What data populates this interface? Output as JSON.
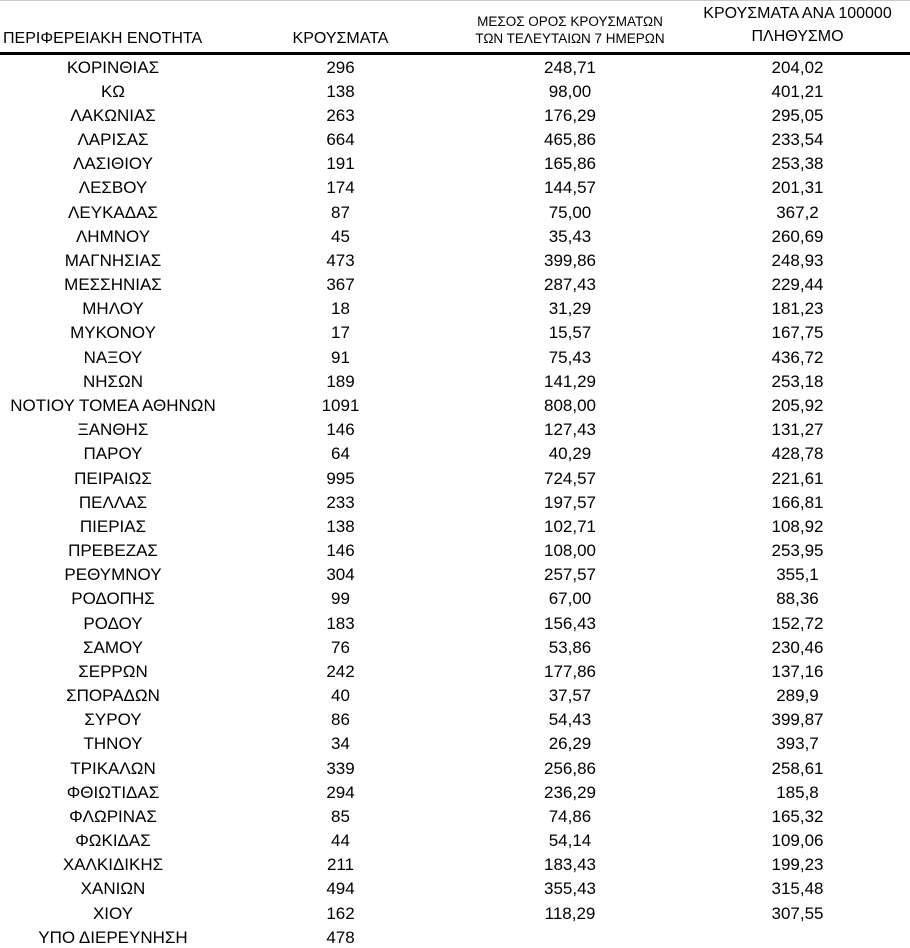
{
  "table": {
    "headers": {
      "region": "ΠΕΡΙΦΕΡΕΙΑΚΗ ΕΝΟΤΗΤΑ",
      "cases": "ΚΡΟΥΣΜΑΤΑ",
      "avg7_line1": "ΜΕΣΟΣ ΟΡΟΣ ΚΡΟΥΣΜΑΤΩΝ",
      "avg7_line2": "ΤΩΝ ΤΕΛΕΥΤΑΙΩΝ 7 ΗΜΕΡΩΝ",
      "per100k_line1": "ΚΡΟΥΣΜΑΤΑ ΑΝΑ 100000",
      "per100k_line2": "ΠΛΗΘΥΣΜΟ"
    },
    "rows": [
      {
        "region": "ΚΟΡΙΝΘΙΑΣ",
        "cases": "296",
        "avg7": "248,71",
        "per100k": "204,02"
      },
      {
        "region": "ΚΩ",
        "cases": "138",
        "avg7": "98,00",
        "per100k": "401,21"
      },
      {
        "region": "ΛΑΚΩΝΙΑΣ",
        "cases": "263",
        "avg7": "176,29",
        "per100k": "295,05"
      },
      {
        "region": "ΛΑΡΙΣΑΣ",
        "cases": "664",
        "avg7": "465,86",
        "per100k": "233,54"
      },
      {
        "region": "ΛΑΣΙΘΙΟΥ",
        "cases": "191",
        "avg7": "165,86",
        "per100k": "253,38"
      },
      {
        "region": "ΛΕΣΒΟΥ",
        "cases": "174",
        "avg7": "144,57",
        "per100k": "201,31"
      },
      {
        "region": "ΛΕΥΚΑΔΑΣ",
        "cases": "87",
        "avg7": "75,00",
        "per100k": "367,2"
      },
      {
        "region": "ΛΗΜΝΟΥ",
        "cases": "45",
        "avg7": "35,43",
        "per100k": "260,69"
      },
      {
        "region": "ΜΑΓΝΗΣΙΑΣ",
        "cases": "473",
        "avg7": "399,86",
        "per100k": "248,93"
      },
      {
        "region": "ΜΕΣΣΗΝΙΑΣ",
        "cases": "367",
        "avg7": "287,43",
        "per100k": "229,44"
      },
      {
        "region": "ΜΗΛΟΥ",
        "cases": "18",
        "avg7": "31,29",
        "per100k": "181,23"
      },
      {
        "region": "ΜΥΚΟΝΟΥ",
        "cases": "17",
        "avg7": "15,57",
        "per100k": "167,75"
      },
      {
        "region": "ΝΑΞΟΥ",
        "cases": "91",
        "avg7": "75,43",
        "per100k": "436,72"
      },
      {
        "region": "ΝΗΣΩΝ",
        "cases": "189",
        "avg7": "141,29",
        "per100k": "253,18"
      },
      {
        "region": "ΝΟΤΙΟΥ ΤΟΜΕΑ ΑΘΗΝΩΝ",
        "cases": "1091",
        "avg7": "808,00",
        "per100k": "205,92"
      },
      {
        "region": "ΞΑΝΘΗΣ",
        "cases": "146",
        "avg7": "127,43",
        "per100k": "131,27"
      },
      {
        "region": "ΠΑΡΟΥ",
        "cases": "64",
        "avg7": "40,29",
        "per100k": "428,78"
      },
      {
        "region": "ΠΕΙΡΑΙΩΣ",
        "cases": "995",
        "avg7": "724,57",
        "per100k": "221,61"
      },
      {
        "region": "ΠΕΛΛΑΣ",
        "cases": "233",
        "avg7": "197,57",
        "per100k": "166,81"
      },
      {
        "region": "ΠΙΕΡΙΑΣ",
        "cases": "138",
        "avg7": "102,71",
        "per100k": "108,92"
      },
      {
        "region": "ΠΡΕΒΕΖΑΣ",
        "cases": "146",
        "avg7": "108,00",
        "per100k": "253,95"
      },
      {
        "region": "ΡΕΘΥΜΝΟΥ",
        "cases": "304",
        "avg7": "257,57",
        "per100k": "355,1"
      },
      {
        "region": "ΡΟΔΟΠΗΣ",
        "cases": "99",
        "avg7": "67,00",
        "per100k": "88,36"
      },
      {
        "region": "ΡΟΔΟΥ",
        "cases": "183",
        "avg7": "156,43",
        "per100k": "152,72"
      },
      {
        "region": "ΣΑΜΟΥ",
        "cases": "76",
        "avg7": "53,86",
        "per100k": "230,46"
      },
      {
        "region": "ΣΕΡΡΩΝ",
        "cases": "242",
        "avg7": "177,86",
        "per100k": "137,16"
      },
      {
        "region": "ΣΠΟΡΑΔΩΝ",
        "cases": "40",
        "avg7": "37,57",
        "per100k": "289,9"
      },
      {
        "region": "ΣΥΡΟΥ",
        "cases": "86",
        "avg7": "54,43",
        "per100k": "399,87"
      },
      {
        "region": "ΤΗΝΟΥ",
        "cases": "34",
        "avg7": "26,29",
        "per100k": "393,7"
      },
      {
        "region": "ΤΡΙΚΑΛΩΝ",
        "cases": "339",
        "avg7": "256,86",
        "per100k": "258,61"
      },
      {
        "region": "ΦΘΙΩΤΙΔΑΣ",
        "cases": "294",
        "avg7": "236,29",
        "per100k": "185,8"
      },
      {
        "region": "ΦΛΩΡΙΝΑΣ",
        "cases": "85",
        "avg7": "74,86",
        "per100k": "165,32"
      },
      {
        "region": "ΦΩΚΙΔΑΣ",
        "cases": "44",
        "avg7": "54,14",
        "per100k": "109,06"
      },
      {
        "region": "ΧΑΛΚΙΔΙΚΗΣ",
        "cases": "211",
        "avg7": "183,43",
        "per100k": "199,23"
      },
      {
        "region": "ΧΑΝΙΩΝ",
        "cases": "494",
        "avg7": "355,43",
        "per100k": "315,48"
      },
      {
        "region": "ΧΙΟΥ",
        "cases": "162",
        "avg7": "118,29",
        "per100k": "307,55"
      },
      {
        "region": "ΥΠΟ ΔΙΕΡΕΥΝΗΣΗ",
        "cases": "478",
        "avg7": "",
        "per100k": ""
      }
    ]
  }
}
